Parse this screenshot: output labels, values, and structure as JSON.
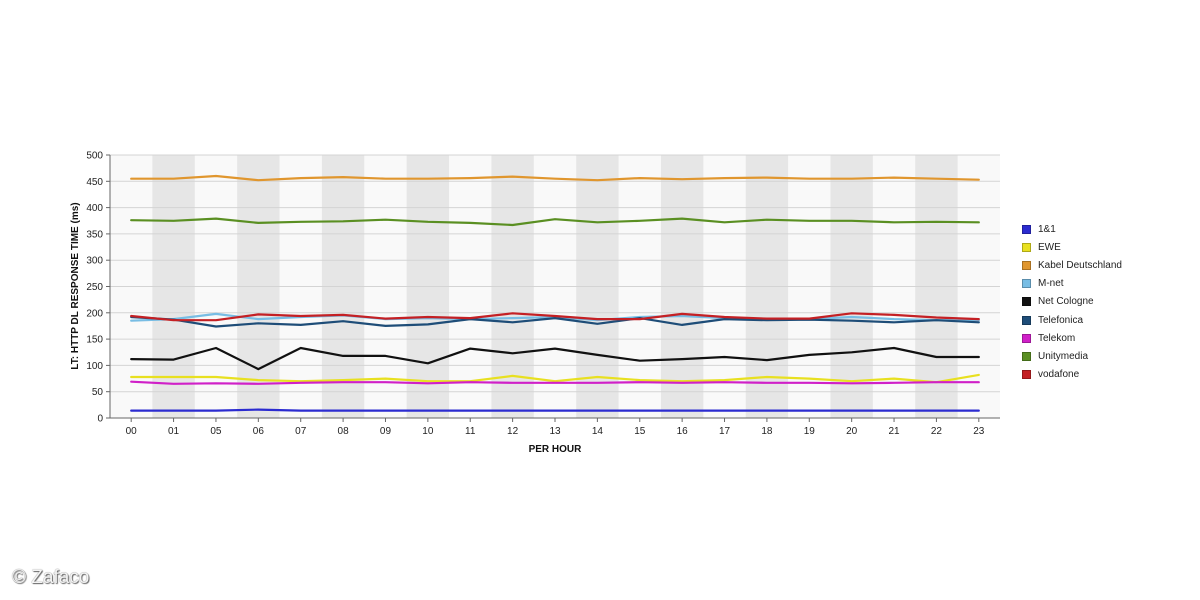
{
  "watermark": "© Zafaco",
  "chart_data": {
    "type": "line",
    "title": "",
    "xlabel": "PER HOUR",
    "ylabel": "LT: HTTP DL RESPONSE TIME (ms)",
    "ylim": [
      0,
      500
    ],
    "yticks": [
      0,
      50,
      100,
      150,
      200,
      250,
      300,
      350,
      400,
      450,
      500
    ],
    "grid": true,
    "legend_position": "right",
    "categories": [
      "00",
      "01",
      "05",
      "06",
      "07",
      "08",
      "09",
      "10",
      "11",
      "12",
      "13",
      "14",
      "15",
      "16",
      "17",
      "18",
      "19",
      "20",
      "21",
      "22",
      "23"
    ],
    "series": [
      {
        "name": "1&1",
        "color": "#2b2bd0",
        "values": [
          14,
          14,
          14,
          16,
          14,
          14,
          14,
          14,
          14,
          14,
          14,
          14,
          14,
          14,
          14,
          14,
          14,
          14,
          14,
          14,
          14
        ]
      },
      {
        "name": "EWE",
        "color": "#e8e020",
        "values": [
          78,
          78,
          78,
          72,
          70,
          72,
          75,
          70,
          70,
          80,
          70,
          78,
          72,
          70,
          72,
          78,
          75,
          70,
          75,
          68,
          82
        ]
      },
      {
        "name": "Kabel Deutschland",
        "color": "#e0962e",
        "values": [
          455,
          455,
          460,
          452,
          456,
          458,
          455,
          455,
          456,
          459,
          455,
          452,
          456,
          454,
          456,
          457,
          455,
          455,
          457,
          455,
          453
        ]
      },
      {
        "name": "M-net",
        "color": "#78bde4",
        "values": [
          185,
          188,
          198,
          188,
          192,
          195,
          188,
          190,
          188,
          190,
          192,
          186,
          192,
          194,
          190,
          188,
          188,
          192,
          188,
          186,
          186
        ]
      },
      {
        "name": "Net Cologne",
        "color": "#111111",
        "values": [
          112,
          111,
          133,
          93,
          133,
          118,
          118,
          104,
          132,
          123,
          132,
          120,
          109,
          112,
          116,
          110,
          120,
          125,
          133,
          116,
          116
        ]
      },
      {
        "name": "Telefonica",
        "color": "#1e4d78",
        "values": [
          192,
          187,
          174,
          180,
          177,
          184,
          175,
          178,
          188,
          182,
          190,
          179,
          190,
          177,
          188,
          186,
          187,
          185,
          182,
          186,
          182
        ]
      },
      {
        "name": "Telekom",
        "color": "#d020c8",
        "values": [
          69,
          65,
          66,
          65,
          67,
          68,
          68,
          66,
          68,
          67,
          67,
          67,
          68,
          67,
          68,
          67,
          67,
          66,
          67,
          68,
          68
        ]
      },
      {
        "name": "Unitymedia",
        "color": "#5a8f22",
        "values": [
          376,
          375,
          379,
          371,
          373,
          374,
          377,
          373,
          371,
          367,
          378,
          372,
          375,
          379,
          372,
          377,
          375,
          375,
          372,
          373,
          372
        ]
      },
      {
        "name": "vodafone",
        "color": "#c42024",
        "values": [
          194,
          186,
          186,
          197,
          194,
          196,
          189,
          192,
          190,
          199,
          194,
          188,
          188,
          198,
          192,
          189,
          189,
          199,
          196,
          191,
          188
        ]
      }
    ]
  }
}
